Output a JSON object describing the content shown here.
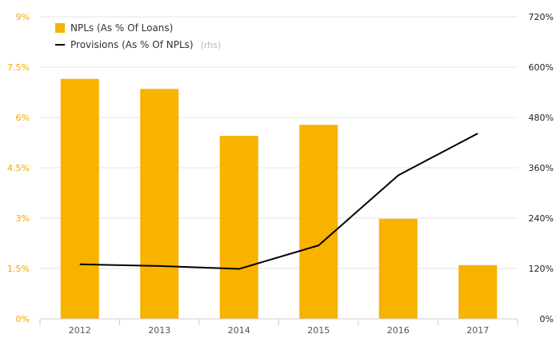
{
  "chart_data": {
    "type": "bar",
    "categories": [
      "2012",
      "2013",
      "2014",
      "2015",
      "2016",
      "2017"
    ],
    "series": [
      {
        "name": "NPLs (As % Of Loans)",
        "type": "bar",
        "axis": "left",
        "color": "#f8b200",
        "values": [
          7.15,
          6.85,
          5.45,
          5.78,
          2.98,
          1.6
        ]
      },
      {
        "name": "Provisions (As % Of NPLs)",
        "type": "line",
        "axis": "right",
        "color": "#000000",
        "values": [
          130,
          126,
          119,
          175,
          342,
          442
        ]
      }
    ],
    "y_left": {
      "range": [
        0,
        9
      ],
      "ticks": [
        0,
        1.5,
        3,
        4.5,
        6,
        7.5,
        9
      ],
      "tick_labels": [
        "0%",
        "1.5%",
        "3%",
        "4.5%",
        "6%",
        "7.5%",
        "9%"
      ],
      "color": "#f5a800"
    },
    "y_right": {
      "range": [
        0,
        720
      ],
      "ticks": [
        0,
        120,
        240,
        360,
        480,
        600,
        720
      ],
      "tick_labels": [
        "0%",
        "120%",
        "240%",
        "360%",
        "480%",
        "600%",
        "720%"
      ],
      "color": "#222222"
    },
    "legend": {
      "position": "top-left",
      "bar_label": "NPLs (As % Of Loans)",
      "line_label": "Provisions (As % Of NPLs)",
      "line_note": "(rhs)"
    },
    "grid": true
  }
}
